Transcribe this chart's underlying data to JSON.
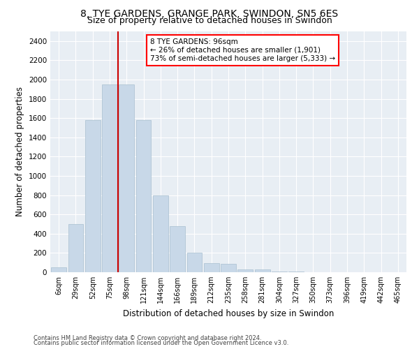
{
  "title1": "8, TYE GARDENS, GRANGE PARK, SWINDON, SN5 6ES",
  "title2": "Size of property relative to detached houses in Swindon",
  "xlabel": "Distribution of detached houses by size in Swindon",
  "ylabel": "Number of detached properties",
  "footnote1": "Contains HM Land Registry data © Crown copyright and database right 2024.",
  "footnote2": "Contains public sector information licensed under the Open Government Licence v3.0.",
  "annotation_line1": "8 TYE GARDENS: 96sqm",
  "annotation_line2": "← 26% of detached houses are smaller (1,901)",
  "annotation_line3": "73% of semi-detached houses are larger (5,333) →",
  "bar_color": "#c8d8e8",
  "bar_edge_color": "#a8bfd0",
  "marker_color": "#cc0000",
  "background_color": "#e8eef4",
  "categories": [
    "6sqm",
    "29sqm",
    "52sqm",
    "75sqm",
    "98sqm",
    "121sqm",
    "144sqm",
    "166sqm",
    "189sqm",
    "212sqm",
    "235sqm",
    "258sqm",
    "281sqm",
    "304sqm",
    "327sqm",
    "350sqm",
    "373sqm",
    "396sqm",
    "419sqm",
    "442sqm",
    "465sqm"
  ],
  "values": [
    50,
    500,
    1580,
    1950,
    1950,
    1580,
    800,
    480,
    200,
    95,
    90,
    30,
    30,
    10,
    5,
    0,
    0,
    0,
    0,
    0,
    0
  ],
  "ylim": [
    0,
    2500
  ],
  "yticks": [
    0,
    200,
    400,
    600,
    800,
    1000,
    1200,
    1400,
    1600,
    1800,
    2000,
    2200,
    2400
  ],
  "marker_bar_index": 4,
  "title_fontsize": 10,
  "subtitle_fontsize": 9,
  "axis_label_fontsize": 8.5,
  "tick_fontsize": 7.5,
  "annotation_fontsize": 7.5
}
